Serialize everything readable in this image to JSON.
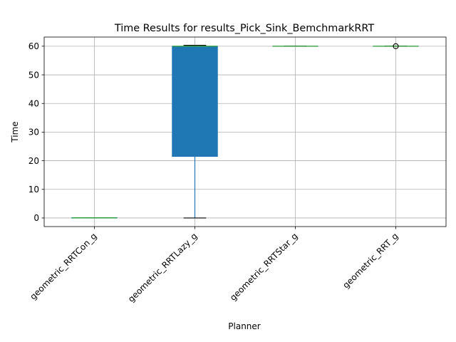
{
  "chart_data": {
    "type": "box",
    "title": "Time Results for results_Pick_Sink_BemchmarkRRT",
    "xlabel": "Planner",
    "ylabel": "Time",
    "ylim": [
      -3,
      63.2
    ],
    "yticks": [
      0,
      10,
      20,
      30,
      40,
      50,
      60
    ],
    "grid": true,
    "box_color": "#1f77b4",
    "median_color": "#2ca02c",
    "categories": [
      "geometric_RRTCon_g",
      "geometric_RRTLazy_g",
      "geometric_RRTStar_g",
      "geometric_RRT_g"
    ],
    "boxes": [
      {
        "name": "geometric_RRTCon_g",
        "whisker_low": 0.0,
        "q1": 0.0,
        "median": 0.05,
        "q3": 0.1,
        "whisker_high": 0.1,
        "outliers": []
      },
      {
        "name": "geometric_RRTLazy_g",
        "whisker_low": 0.0,
        "q1": 21.5,
        "median": 60.0,
        "q3": 60.0,
        "whisker_high": 60.3,
        "outliers": []
      },
      {
        "name": "geometric_RRTStar_g",
        "whisker_low": 60.0,
        "q1": 60.0,
        "median": 60.0,
        "q3": 60.0,
        "whisker_high": 60.0,
        "outliers": []
      },
      {
        "name": "geometric_RRT_g",
        "whisker_low": 60.0,
        "q1": 60.0,
        "median": 60.0,
        "q3": 60.0,
        "whisker_high": 60.0,
        "outliers": [
          60.0
        ]
      }
    ]
  }
}
